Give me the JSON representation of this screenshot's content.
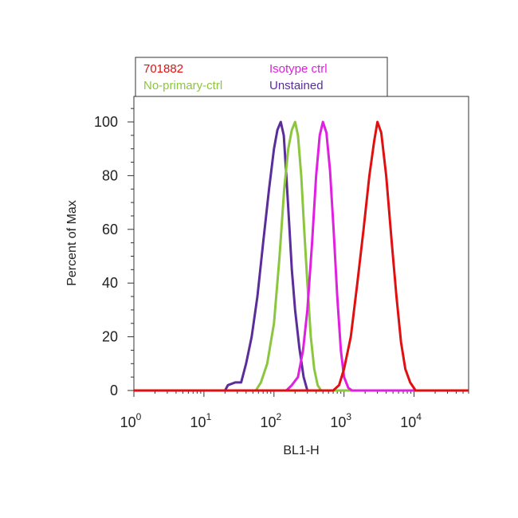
{
  "chart_data": {
    "type": "line",
    "title": "",
    "xlabel": "BL1-H",
    "ylabel": "Percent of Max",
    "xscale": "log",
    "xlim": [
      1,
      60000
    ],
    "ylim": [
      0,
      110
    ],
    "y_ticks": [
      0,
      20,
      40,
      60,
      80,
      100
    ],
    "x_ticks": [
      {
        "value": 1,
        "base": "10",
        "exp": "0"
      },
      {
        "value": 10,
        "base": "10",
        "exp": "1"
      },
      {
        "value": 100,
        "base": "10",
        "exp": "2"
      },
      {
        "value": 1000,
        "base": "10",
        "exp": "3"
      },
      {
        "value": 10000,
        "base": "10",
        "exp": "4"
      }
    ],
    "grid": false,
    "legend_position": "top",
    "series": [
      {
        "name": "Unstained",
        "color": "#5b2d9a",
        "points": [
          [
            1,
            0
          ],
          [
            20,
            0
          ],
          [
            22,
            2
          ],
          [
            28,
            3
          ],
          [
            34,
            3
          ],
          [
            40,
            10
          ],
          [
            48,
            20
          ],
          [
            58,
            35
          ],
          [
            70,
            55
          ],
          [
            85,
            75
          ],
          [
            100,
            90
          ],
          [
            112,
            97
          ],
          [
            125,
            100
          ],
          [
            138,
            95
          ],
          [
            150,
            80
          ],
          [
            165,
            62
          ],
          [
            180,
            45
          ],
          [
            200,
            30
          ],
          [
            230,
            16
          ],
          [
            265,
            5
          ],
          [
            300,
            0
          ],
          [
            60000,
            0
          ]
        ]
      },
      {
        "name": "No-primary-ctrl",
        "color": "#8cc63f",
        "points": [
          [
            1,
            0
          ],
          [
            55,
            0
          ],
          [
            65,
            3
          ],
          [
            80,
            10
          ],
          [
            100,
            25
          ],
          [
            120,
            50
          ],
          [
            140,
            75
          ],
          [
            160,
            90
          ],
          [
            180,
            97
          ],
          [
            200,
            100
          ],
          [
            220,
            95
          ],
          [
            245,
            80
          ],
          [
            270,
            60
          ],
          [
            300,
            40
          ],
          [
            335,
            20
          ],
          [
            375,
            8
          ],
          [
            420,
            2
          ],
          [
            470,
            0
          ],
          [
            60000,
            0
          ]
        ]
      },
      {
        "name": "Isotype ctrl",
        "color": "#e020e0",
        "points": [
          [
            1,
            0
          ],
          [
            150,
            0
          ],
          [
            180,
            2
          ],
          [
            220,
            5
          ],
          [
            260,
            15
          ],
          [
            300,
            30
          ],
          [
            350,
            55
          ],
          [
            400,
            80
          ],
          [
            450,
            95
          ],
          [
            500,
            100
          ],
          [
            560,
            96
          ],
          [
            630,
            82
          ],
          [
            710,
            60
          ],
          [
            800,
            35
          ],
          [
            900,
            15
          ],
          [
            1000,
            5
          ],
          [
            1150,
            1
          ],
          [
            1300,
            0
          ],
          [
            60000,
            0
          ]
        ]
      },
      {
        "name": "701882",
        "color": "#e01010",
        "points": [
          [
            1,
            0
          ],
          [
            700,
            0
          ],
          [
            850,
            2
          ],
          [
            1000,
            8
          ],
          [
            1250,
            20
          ],
          [
            1550,
            40
          ],
          [
            1900,
            60
          ],
          [
            2300,
            80
          ],
          [
            2700,
            93
          ],
          [
            3000,
            100
          ],
          [
            3400,
            96
          ],
          [
            4000,
            80
          ],
          [
            4800,
            55
          ],
          [
            5600,
            35
          ],
          [
            6500,
            18
          ],
          [
            7500,
            8
          ],
          [
            8800,
            3
          ],
          [
            10500,
            0
          ],
          [
            60000,
            0
          ]
        ]
      }
    ],
    "legend_entries": [
      {
        "label": "701882",
        "color": "#e01010"
      },
      {
        "label": "Isotype ctrl",
        "color": "#e020e0"
      },
      {
        "label": "No-primary-ctrl",
        "color": "#8cc63f"
      },
      {
        "label": "Unstained",
        "color": "#5b2d9a"
      }
    ]
  }
}
